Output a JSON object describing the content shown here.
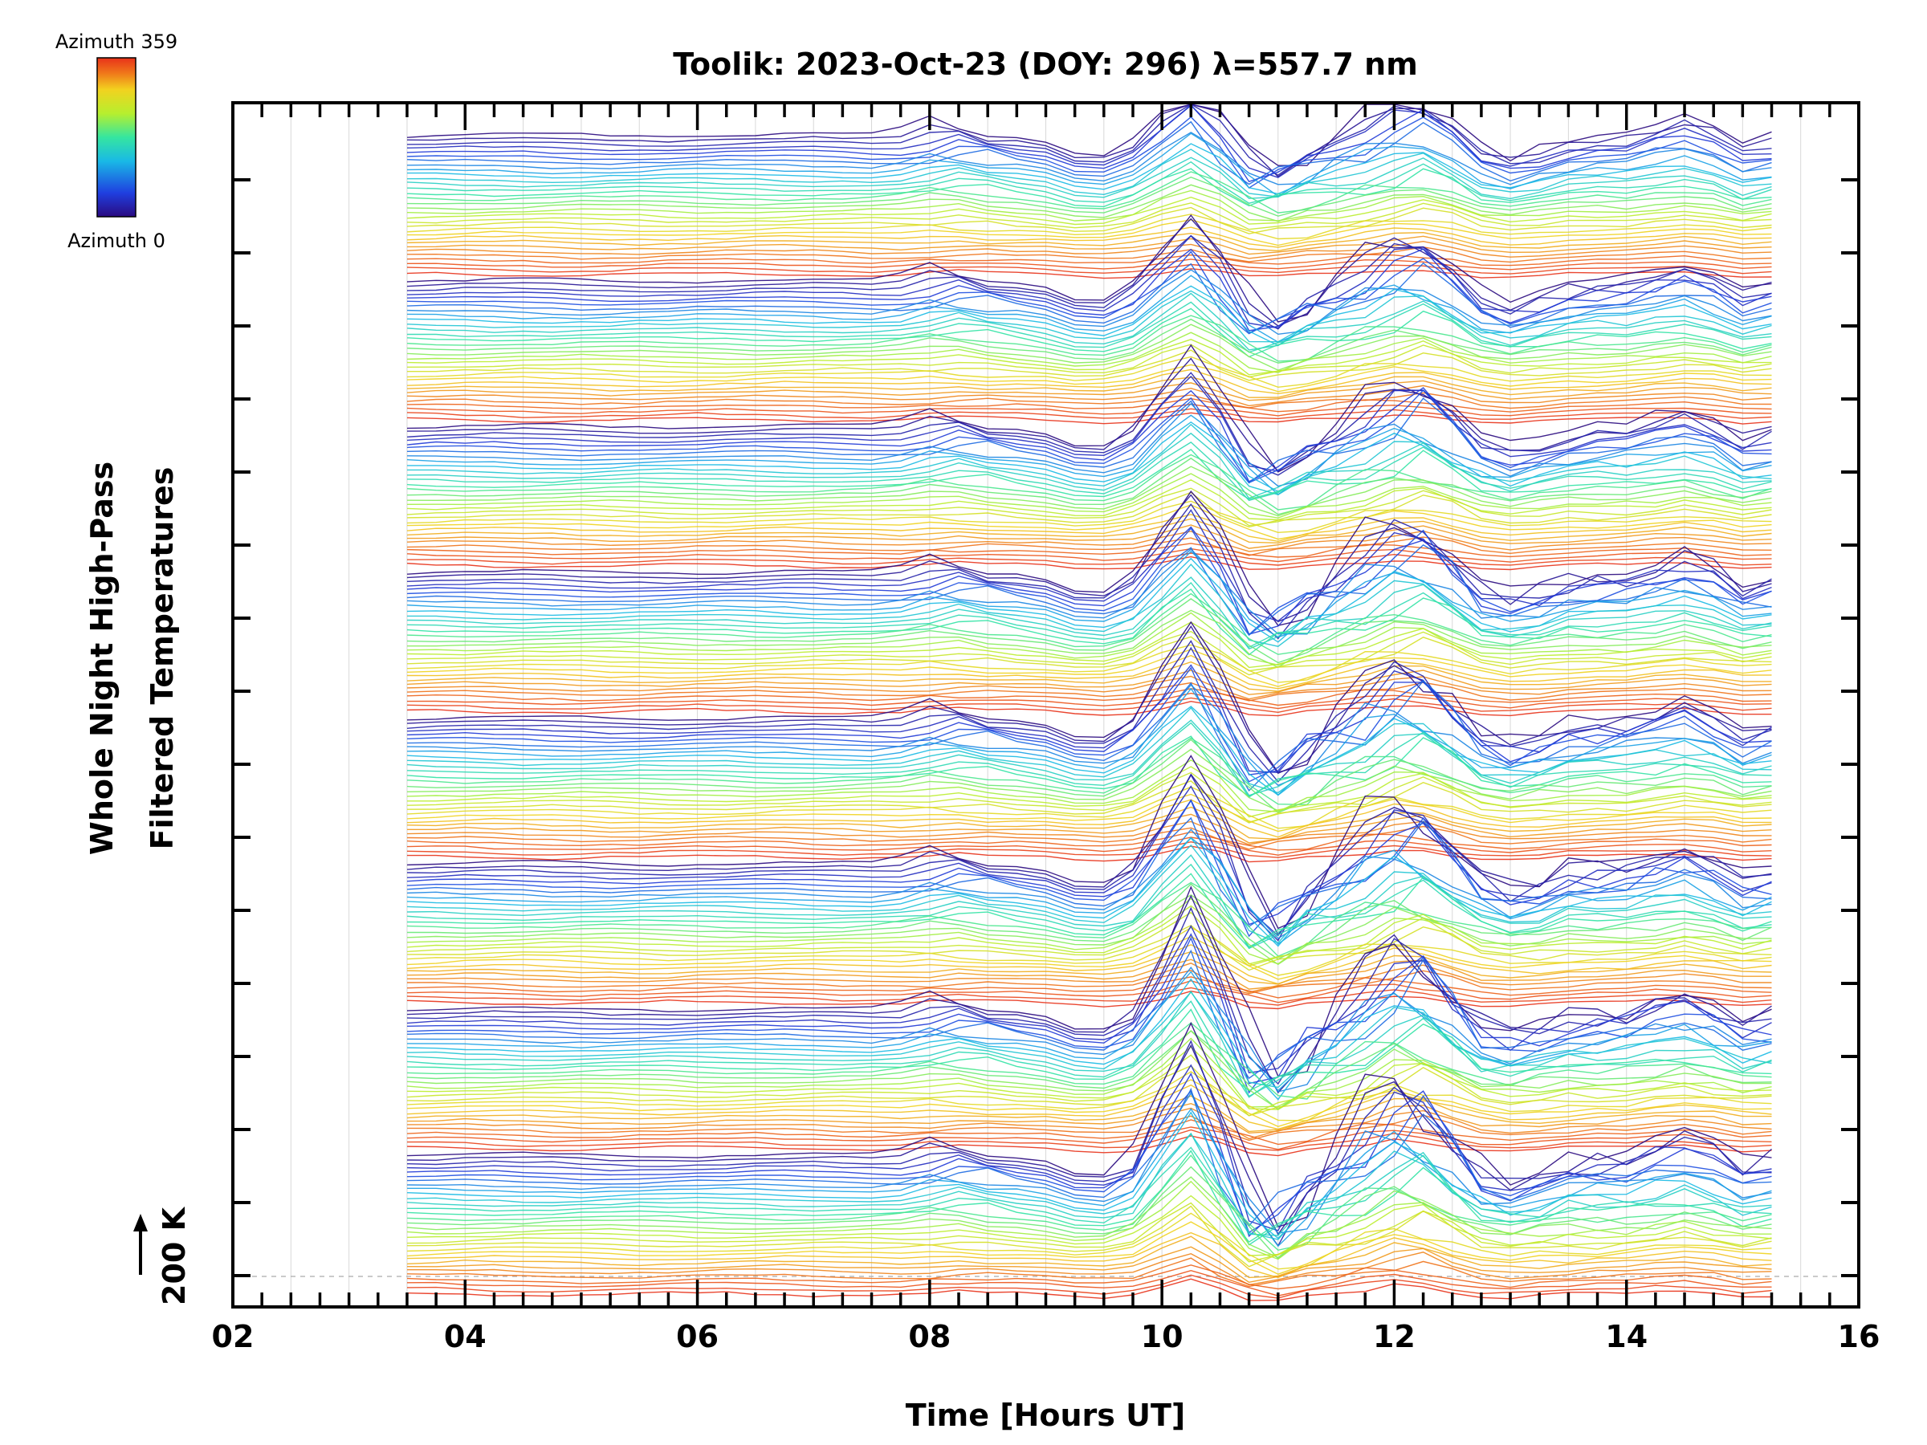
{
  "chart_data": {
    "type": "line",
    "title": "Toolik: 2023-Oct-23 (DOY: 296) λ=557.7 nm",
    "xlabel": "Time [Hours UT]",
    "ylabel_line1": "Whole Night High-Pass",
    "ylabel_line2": "Filtered Temperatures",
    "scale_label": "200 K",
    "scale_kelvin": 200,
    "xlim": [
      2,
      16
    ],
    "x_ticks": [
      2,
      4,
      6,
      8,
      10,
      12,
      14,
      16
    ],
    "x_tick_labels": [
      "02",
      "04",
      "06",
      "08",
      "10",
      "12",
      "14",
      "16"
    ],
    "x_start": 3.5,
    "x_end": 15.25,
    "x_step": 0.25,
    "grid": true,
    "colorbar": {
      "top_label": "Azimuth 359",
      "bottom_label": "Azimuth 0",
      "colormap": "rainbow",
      "colors": [
        "#2a0a80",
        "#1f3fe0",
        "#19b9e6",
        "#35e6a0",
        "#b7ef2e",
        "#f2d21f",
        "#f07a1a",
        "#e8321a"
      ]
    },
    "groups": 8,
    "lines_per_group": 32,
    "event_hours": [
      8.0,
      9.5,
      10.25,
      11.0,
      11.75,
      12.25,
      13.0,
      14.5,
      15.0
    ],
    "event_description_note": ""
  }
}
